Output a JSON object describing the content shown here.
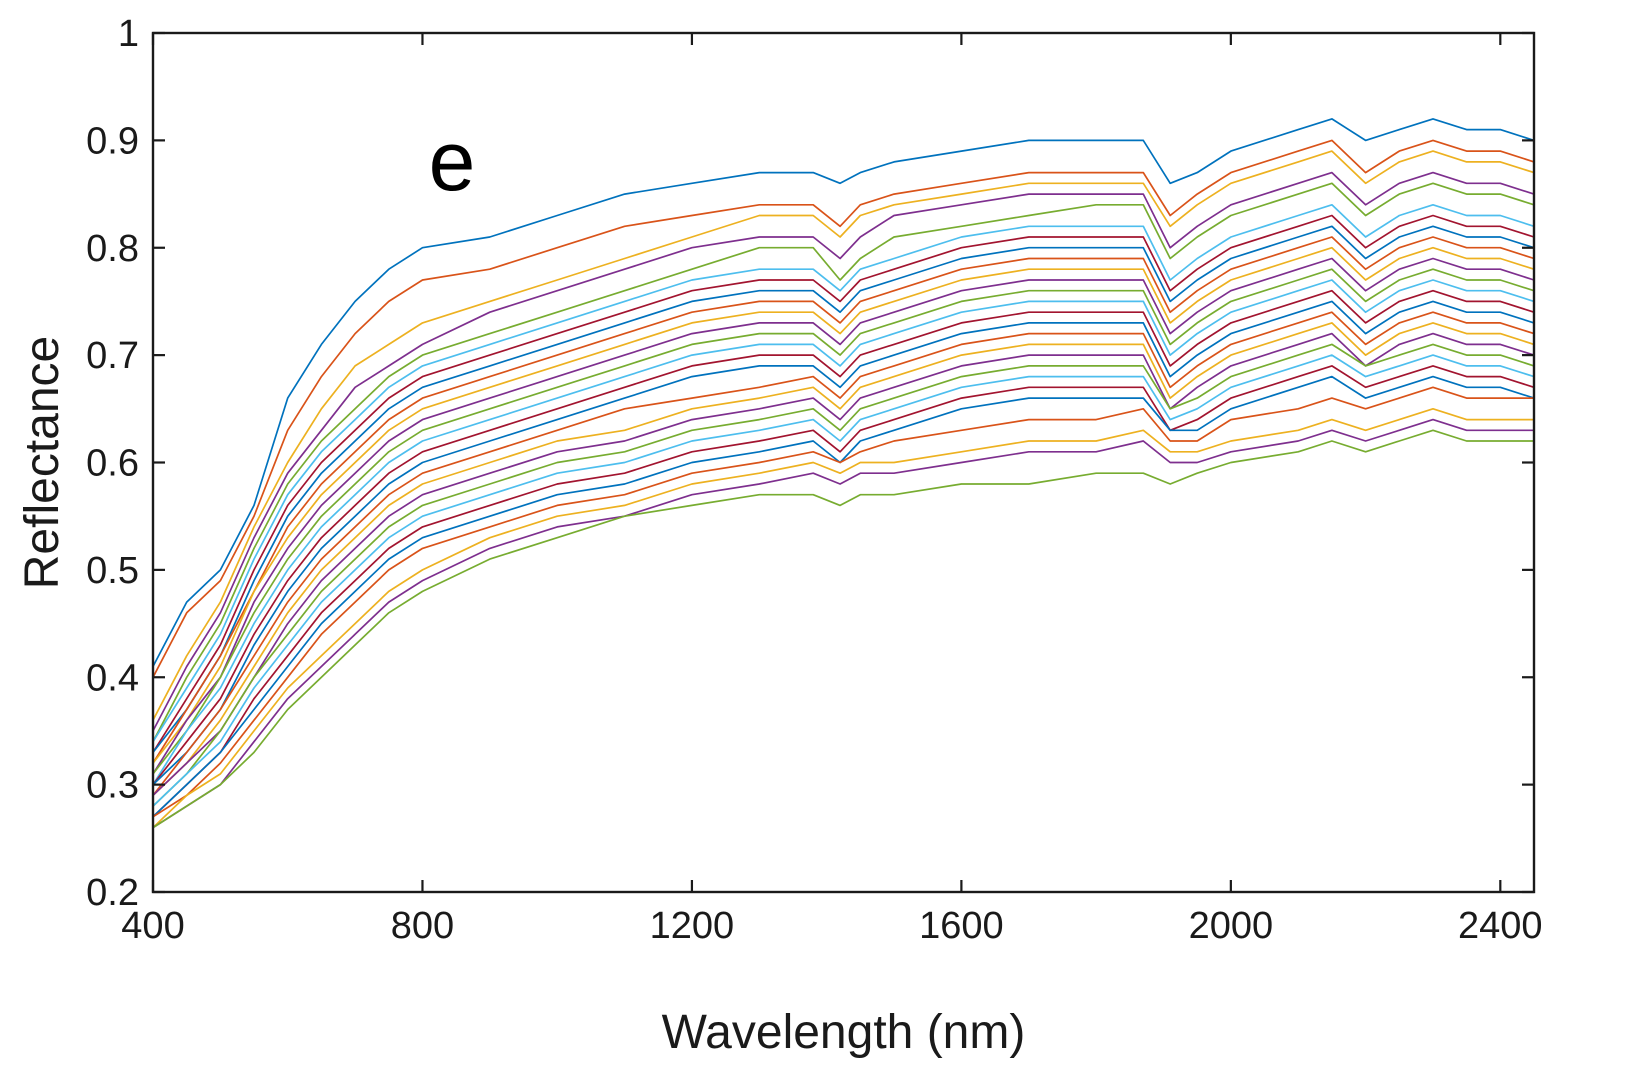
{
  "chart_data": {
    "type": "line",
    "panel_label": "e",
    "xlabel": "Wavelength (nm)",
    "ylabel": "Reflectance",
    "xlim": [
      400,
      2450
    ],
    "ylim": [
      0.2,
      1
    ],
    "x_ticks": [
      400,
      800,
      1200,
      1600,
      2000,
      2400
    ],
    "x_tick_labels": [
      "400",
      "800",
      "1200",
      "1600",
      "2000",
      "2400"
    ],
    "y_ticks": [
      0.2,
      0.3,
      0.4,
      0.5,
      0.6,
      0.7,
      0.8,
      0.9,
      1
    ],
    "y_tick_labels": [
      "0.2",
      "0.3",
      "0.4",
      "0.5",
      "0.6",
      "0.7",
      "0.8",
      "0.9",
      "1"
    ],
    "grid": false,
    "legend": "none",
    "series_colors": [
      "#0072BD",
      "#D95319",
      "#EDB120",
      "#7E2F8E",
      "#77AC30",
      "#4DBEEE",
      "#A2142F"
    ],
    "x": [
      400,
      450,
      500,
      550,
      600,
      650,
      700,
      750,
      800,
      900,
      1000,
      1100,
      1200,
      1300,
      1380,
      1420,
      1450,
      1500,
      1600,
      1700,
      1800,
      1870,
      1910,
      1950,
      2000,
      2100,
      2150,
      2200,
      2250,
      2300,
      2350,
      2400,
      2450
    ],
    "series": [
      {
        "values": [
          0.41,
          0.47,
          0.5,
          0.56,
          0.66,
          0.71,
          0.75,
          0.78,
          0.8,
          0.81,
          0.83,
          0.85,
          0.86,
          0.87,
          0.87,
          0.86,
          0.87,
          0.88,
          0.89,
          0.9,
          0.9,
          0.9,
          0.86,
          0.87,
          0.89,
          0.91,
          0.92,
          0.9,
          0.91,
          0.92,
          0.91,
          0.91,
          0.9
        ]
      },
      {
        "values": [
          0.4,
          0.46,
          0.49,
          0.55,
          0.63,
          0.68,
          0.72,
          0.75,
          0.77,
          0.78,
          0.8,
          0.82,
          0.83,
          0.84,
          0.84,
          0.82,
          0.84,
          0.85,
          0.86,
          0.87,
          0.87,
          0.87,
          0.83,
          0.85,
          0.87,
          0.89,
          0.9,
          0.87,
          0.89,
          0.9,
          0.89,
          0.89,
          0.88
        ]
      },
      {
        "values": [
          0.36,
          0.42,
          0.47,
          0.54,
          0.6,
          0.65,
          0.69,
          0.71,
          0.73,
          0.75,
          0.77,
          0.79,
          0.81,
          0.83,
          0.83,
          0.81,
          0.83,
          0.84,
          0.85,
          0.86,
          0.86,
          0.86,
          0.82,
          0.84,
          0.86,
          0.88,
          0.89,
          0.86,
          0.88,
          0.89,
          0.88,
          0.88,
          0.87
        ]
      },
      {
        "values": [
          0.35,
          0.41,
          0.46,
          0.53,
          0.59,
          0.63,
          0.67,
          0.69,
          0.71,
          0.74,
          0.76,
          0.78,
          0.8,
          0.81,
          0.81,
          0.79,
          0.81,
          0.83,
          0.84,
          0.85,
          0.85,
          0.85,
          0.8,
          0.82,
          0.84,
          0.86,
          0.87,
          0.84,
          0.86,
          0.87,
          0.86,
          0.86,
          0.85
        ]
      },
      {
        "values": [
          0.34,
          0.4,
          0.45,
          0.52,
          0.58,
          0.62,
          0.65,
          0.68,
          0.7,
          0.72,
          0.74,
          0.76,
          0.78,
          0.8,
          0.8,
          0.77,
          0.79,
          0.81,
          0.82,
          0.83,
          0.84,
          0.84,
          0.79,
          0.81,
          0.83,
          0.85,
          0.86,
          0.83,
          0.85,
          0.86,
          0.85,
          0.85,
          0.84
        ]
      },
      {
        "values": [
          0.34,
          0.39,
          0.44,
          0.51,
          0.57,
          0.61,
          0.64,
          0.67,
          0.69,
          0.71,
          0.73,
          0.75,
          0.77,
          0.78,
          0.78,
          0.76,
          0.78,
          0.79,
          0.81,
          0.82,
          0.82,
          0.82,
          0.77,
          0.79,
          0.81,
          0.83,
          0.84,
          0.81,
          0.83,
          0.84,
          0.83,
          0.83,
          0.82
        ]
      },
      {
        "values": [
          0.33,
          0.38,
          0.43,
          0.5,
          0.56,
          0.6,
          0.63,
          0.66,
          0.68,
          0.7,
          0.72,
          0.74,
          0.76,
          0.77,
          0.77,
          0.75,
          0.77,
          0.78,
          0.8,
          0.81,
          0.81,
          0.81,
          0.76,
          0.78,
          0.8,
          0.82,
          0.83,
          0.8,
          0.82,
          0.83,
          0.82,
          0.82,
          0.81
        ]
      },
      {
        "values": [
          0.33,
          0.37,
          0.42,
          0.49,
          0.55,
          0.59,
          0.62,
          0.65,
          0.67,
          0.69,
          0.71,
          0.73,
          0.75,
          0.76,
          0.76,
          0.74,
          0.76,
          0.77,
          0.79,
          0.8,
          0.8,
          0.8,
          0.75,
          0.77,
          0.79,
          0.81,
          0.82,
          0.79,
          0.81,
          0.82,
          0.81,
          0.81,
          0.8
        ]
      },
      {
        "values": [
          0.32,
          0.37,
          0.42,
          0.48,
          0.54,
          0.58,
          0.61,
          0.64,
          0.66,
          0.68,
          0.7,
          0.72,
          0.74,
          0.75,
          0.75,
          0.73,
          0.75,
          0.76,
          0.78,
          0.79,
          0.79,
          0.79,
          0.74,
          0.76,
          0.78,
          0.8,
          0.81,
          0.78,
          0.8,
          0.81,
          0.8,
          0.8,
          0.79
        ]
      },
      {
        "values": [
          0.32,
          0.36,
          0.41,
          0.48,
          0.53,
          0.57,
          0.6,
          0.63,
          0.65,
          0.67,
          0.69,
          0.71,
          0.73,
          0.74,
          0.74,
          0.72,
          0.74,
          0.75,
          0.77,
          0.78,
          0.78,
          0.78,
          0.73,
          0.75,
          0.77,
          0.79,
          0.8,
          0.77,
          0.79,
          0.8,
          0.79,
          0.79,
          0.78
        ]
      },
      {
        "values": [
          0.31,
          0.36,
          0.4,
          0.47,
          0.52,
          0.56,
          0.59,
          0.62,
          0.64,
          0.66,
          0.68,
          0.7,
          0.72,
          0.73,
          0.73,
          0.71,
          0.73,
          0.74,
          0.76,
          0.77,
          0.77,
          0.77,
          0.72,
          0.74,
          0.76,
          0.78,
          0.79,
          0.76,
          0.78,
          0.79,
          0.78,
          0.78,
          0.77
        ]
      },
      {
        "values": [
          0.31,
          0.35,
          0.4,
          0.46,
          0.51,
          0.55,
          0.58,
          0.61,
          0.63,
          0.65,
          0.67,
          0.69,
          0.71,
          0.72,
          0.72,
          0.7,
          0.72,
          0.73,
          0.75,
          0.76,
          0.76,
          0.76,
          0.71,
          0.73,
          0.75,
          0.77,
          0.78,
          0.75,
          0.77,
          0.78,
          0.77,
          0.77,
          0.76
        ]
      },
      {
        "values": [
          0.3,
          0.35,
          0.39,
          0.45,
          0.5,
          0.54,
          0.57,
          0.6,
          0.62,
          0.64,
          0.66,
          0.68,
          0.7,
          0.71,
          0.71,
          0.69,
          0.71,
          0.72,
          0.74,
          0.75,
          0.75,
          0.75,
          0.7,
          0.72,
          0.74,
          0.76,
          0.77,
          0.74,
          0.76,
          0.77,
          0.76,
          0.76,
          0.75
        ]
      },
      {
        "values": [
          0.3,
          0.34,
          0.38,
          0.44,
          0.49,
          0.53,
          0.56,
          0.59,
          0.61,
          0.63,
          0.65,
          0.67,
          0.69,
          0.7,
          0.7,
          0.68,
          0.7,
          0.71,
          0.73,
          0.74,
          0.74,
          0.74,
          0.69,
          0.71,
          0.73,
          0.75,
          0.76,
          0.73,
          0.75,
          0.76,
          0.75,
          0.75,
          0.74
        ]
      },
      {
        "values": [
          0.3,
          0.33,
          0.37,
          0.43,
          0.48,
          0.52,
          0.55,
          0.58,
          0.6,
          0.62,
          0.64,
          0.66,
          0.68,
          0.69,
          0.69,
          0.67,
          0.69,
          0.7,
          0.72,
          0.73,
          0.73,
          0.73,
          0.68,
          0.7,
          0.72,
          0.74,
          0.75,
          0.72,
          0.74,
          0.75,
          0.74,
          0.74,
          0.73
        ]
      },
      {
        "values": [
          0.29,
          0.33,
          0.37,
          0.42,
          0.47,
          0.51,
          0.54,
          0.57,
          0.59,
          0.61,
          0.63,
          0.65,
          0.66,
          0.67,
          0.68,
          0.66,
          0.68,
          0.69,
          0.71,
          0.72,
          0.72,
          0.72,
          0.67,
          0.69,
          0.71,
          0.73,
          0.74,
          0.71,
          0.73,
          0.74,
          0.73,
          0.73,
          0.72
        ]
      },
      {
        "values": [
          0.29,
          0.32,
          0.36,
          0.41,
          0.46,
          0.5,
          0.53,
          0.56,
          0.58,
          0.6,
          0.62,
          0.63,
          0.65,
          0.66,
          0.67,
          0.65,
          0.67,
          0.68,
          0.7,
          0.71,
          0.71,
          0.71,
          0.66,
          0.68,
          0.7,
          0.72,
          0.73,
          0.7,
          0.72,
          0.73,
          0.72,
          0.72,
          0.71
        ]
      },
      {
        "values": [
          0.29,
          0.32,
          0.35,
          0.4,
          0.45,
          0.49,
          0.52,
          0.55,
          0.57,
          0.59,
          0.61,
          0.62,
          0.64,
          0.65,
          0.66,
          0.64,
          0.66,
          0.67,
          0.69,
          0.7,
          0.7,
          0.7,
          0.65,
          0.67,
          0.69,
          0.71,
          0.72,
          0.69,
          0.71,
          0.72,
          0.71,
          0.71,
          0.7
        ]
      },
      {
        "values": [
          0.28,
          0.31,
          0.35,
          0.4,
          0.44,
          0.48,
          0.51,
          0.54,
          0.56,
          0.58,
          0.6,
          0.61,
          0.63,
          0.64,
          0.65,
          0.63,
          0.65,
          0.66,
          0.68,
          0.69,
          0.69,
          0.69,
          0.65,
          0.66,
          0.68,
          0.7,
          0.71,
          0.69,
          0.7,
          0.71,
          0.7,
          0.7,
          0.69
        ]
      },
      {
        "values": [
          0.28,
          0.31,
          0.34,
          0.39,
          0.43,
          0.47,
          0.5,
          0.53,
          0.55,
          0.57,
          0.59,
          0.6,
          0.62,
          0.63,
          0.64,
          0.62,
          0.64,
          0.65,
          0.67,
          0.68,
          0.68,
          0.68,
          0.64,
          0.65,
          0.67,
          0.69,
          0.7,
          0.68,
          0.69,
          0.7,
          0.69,
          0.69,
          0.68
        ]
      },
      {
        "values": [
          0.27,
          0.3,
          0.33,
          0.38,
          0.42,
          0.46,
          0.49,
          0.52,
          0.54,
          0.56,
          0.58,
          0.59,
          0.61,
          0.62,
          0.63,
          0.61,
          0.63,
          0.64,
          0.66,
          0.67,
          0.67,
          0.67,
          0.63,
          0.64,
          0.66,
          0.68,
          0.69,
          0.67,
          0.68,
          0.69,
          0.68,
          0.68,
          0.67
        ]
      },
      {
        "values": [
          0.27,
          0.3,
          0.33,
          0.37,
          0.41,
          0.45,
          0.48,
          0.51,
          0.53,
          0.55,
          0.57,
          0.58,
          0.6,
          0.61,
          0.62,
          0.6,
          0.62,
          0.63,
          0.65,
          0.66,
          0.66,
          0.66,
          0.63,
          0.63,
          0.65,
          0.67,
          0.68,
          0.66,
          0.67,
          0.68,
          0.67,
          0.67,
          0.66
        ]
      },
      {
        "values": [
          0.27,
          0.29,
          0.32,
          0.36,
          0.4,
          0.44,
          0.47,
          0.5,
          0.52,
          0.54,
          0.56,
          0.57,
          0.59,
          0.6,
          0.61,
          0.6,
          0.61,
          0.62,
          0.63,
          0.64,
          0.64,
          0.65,
          0.62,
          0.62,
          0.64,
          0.65,
          0.66,
          0.65,
          0.66,
          0.67,
          0.66,
          0.66,
          0.66
        ]
      },
      {
        "values": [
          0.26,
          0.29,
          0.31,
          0.35,
          0.39,
          0.42,
          0.45,
          0.48,
          0.5,
          0.53,
          0.55,
          0.56,
          0.58,
          0.59,
          0.6,
          0.59,
          0.6,
          0.6,
          0.61,
          0.62,
          0.62,
          0.63,
          0.61,
          0.61,
          0.62,
          0.63,
          0.64,
          0.63,
          0.64,
          0.65,
          0.64,
          0.64,
          0.64
        ]
      },
      {
        "values": [
          0.26,
          0.28,
          0.3,
          0.34,
          0.38,
          0.41,
          0.44,
          0.47,
          0.49,
          0.52,
          0.54,
          0.55,
          0.57,
          0.58,
          0.59,
          0.58,
          0.59,
          0.59,
          0.6,
          0.61,
          0.61,
          0.62,
          0.6,
          0.6,
          0.61,
          0.62,
          0.63,
          0.62,
          0.63,
          0.64,
          0.63,
          0.63,
          0.63
        ]
      },
      {
        "values": [
          0.26,
          0.28,
          0.3,
          0.33,
          0.37,
          0.4,
          0.43,
          0.46,
          0.48,
          0.51,
          0.53,
          0.55,
          0.56,
          0.57,
          0.57,
          0.56,
          0.57,
          0.57,
          0.58,
          0.58,
          0.59,
          0.59,
          0.58,
          0.59,
          0.6,
          0.61,
          0.62,
          0.61,
          0.62,
          0.63,
          0.62,
          0.62,
          0.62
        ]
      }
    ]
  }
}
